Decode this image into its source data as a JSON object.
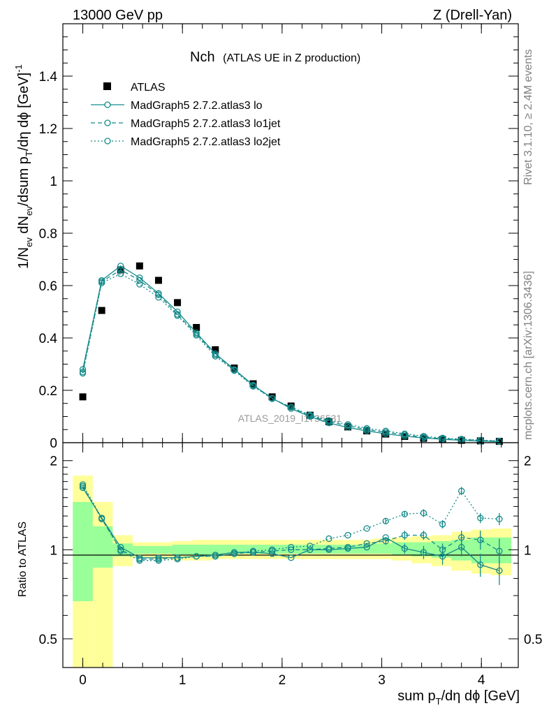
{
  "header": {
    "left_title": "13000 GeV pp",
    "right_title": "Z (Drell-Yan)"
  },
  "side_labels": {
    "rivet": "Rivet 3.1.10, ≥ 2.4M events",
    "mcplots": "mcplots.cern.ch [arXiv:1306.3436]"
  },
  "plot_title": {
    "main": "Nch",
    "sub": "(ATLAS UE in Z production)"
  },
  "watermark": "ATLAS_2019_I1736531",
  "colors": {
    "mc": "#138a8a",
    "data": "#000000",
    "band_inner": "#99ff99",
    "band_outer": "#ffff99",
    "frame": "#000000"
  },
  "chart_data": [
    {
      "type": "scatter",
      "panel": "main",
      "ylabel": "1/N_ev dN_ev/dsum p_T/dη dϕ [GeV]^-1",
      "ylim": [
        0,
        1.6
      ],
      "yticks": [
        0,
        0.2,
        0.4,
        0.6,
        0.8,
        1,
        1.2,
        1.4
      ],
      "ytick_labels": [
        "0",
        "0.2",
        "0.4",
        "0.6",
        "0.8",
        "1",
        "1.2",
        "1.4"
      ],
      "legend_position": "top-left",
      "x": [
        0.0,
        0.19,
        0.38,
        0.57,
        0.76,
        0.95,
        1.14,
        1.33,
        1.52,
        1.71,
        1.9,
        2.09,
        2.28,
        2.47,
        2.66,
        2.85,
        3.04,
        3.23,
        3.42,
        3.61,
        3.8,
        3.99,
        4.18
      ],
      "series": [
        {
          "name": "ATLAS",
          "style": "square",
          "values": [
            0.175,
            0.505,
            0.66,
            0.675,
            0.62,
            0.535,
            0.44,
            0.355,
            0.285,
            0.225,
            0.175,
            0.14,
            0.105,
            0.08,
            0.06,
            0.045,
            0.033,
            0.024,
            0.017,
            0.012,
            0.009,
            0.007,
            0.005
          ]
        },
        {
          "name": "MadGraph5 2.7.2.atlas3 lo",
          "style": "solid",
          "values": [
            0.28,
            0.62,
            0.675,
            0.63,
            0.57,
            0.5,
            0.42,
            0.34,
            0.28,
            0.22,
            0.17,
            0.13,
            0.1,
            0.075,
            0.058,
            0.045,
            0.034,
            0.025,
            0.018,
            0.013,
            0.009,
            0.006,
            0.004
          ]
        },
        {
          "name": "MadGraph5 2.7.2.atlas3 lo1jet",
          "style": "dashed",
          "values": [
            0.27,
            0.615,
            0.66,
            0.62,
            0.565,
            0.49,
            0.415,
            0.335,
            0.278,
            0.218,
            0.168,
            0.135,
            0.103,
            0.08,
            0.065,
            0.05,
            0.04,
            0.03,
            0.021,
            0.015,
            0.012,
            0.009,
            0.006
          ]
        },
        {
          "name": "MadGraph5 2.7.2.atlas3 lo2jet",
          "style": "dotted",
          "values": [
            0.265,
            0.61,
            0.645,
            0.605,
            0.555,
            0.485,
            0.41,
            0.33,
            0.275,
            0.215,
            0.168,
            0.136,
            0.106,
            0.085,
            0.07,
            0.055,
            0.045,
            0.034,
            0.025,
            0.018,
            0.014,
            0.01,
            0.007
          ]
        }
      ]
    },
    {
      "type": "line",
      "panel": "ratio",
      "ylabel": "Ratio to ATLAS",
      "ylim": [
        0.4,
        2.3
      ],
      "log_y": true,
      "yticks": [
        0.5,
        1,
        2
      ],
      "ytick_labels": [
        "0.5",
        "1",
        "2"
      ],
      "xlabel": "sum p_T/dη dϕ [GeV]",
      "xlim": [
        -0.2,
        4.37
      ],
      "xticks": [
        0,
        1,
        2,
        3,
        4
      ],
      "xtick_labels": [
        "0",
        "1",
        "2",
        "3",
        "4"
      ],
      "x": [
        0.0,
        0.19,
        0.38,
        0.57,
        0.76,
        0.95,
        1.14,
        1.33,
        1.52,
        1.71,
        1.9,
        2.09,
        2.28,
        2.47,
        2.66,
        2.85,
        3.04,
        3.23,
        3.42,
        3.61,
        3.8,
        3.99,
        4.18
      ],
      "bin_edges": [
        -0.1,
        0.1,
        0.3,
        0.5,
        0.7,
        0.9,
        1.1,
        1.3,
        1.5,
        1.7,
        1.9,
        2.1,
        2.3,
        2.5,
        2.7,
        2.9,
        3.1,
        3.3,
        3.5,
        3.7,
        3.9,
        4.1,
        4.3
      ],
      "band_inner": {
        "low": [
          0.67,
          0.87,
          0.95,
          0.97,
          0.97,
          0.96,
          0.96,
          0.97,
          0.97,
          0.97,
          0.97,
          0.97,
          0.97,
          0.97,
          0.97,
          0.97,
          0.96,
          0.95,
          0.94,
          0.92,
          0.9,
          0.9,
          0.9
        ],
        "high": [
          1.45,
          1.2,
          1.05,
          1.03,
          1.03,
          1.04,
          1.04,
          1.04,
          1.04,
          1.04,
          1.04,
          1.04,
          1.04,
          1.04,
          1.04,
          1.05,
          1.06,
          1.06,
          1.07,
          1.08,
          1.1,
          1.1,
          1.1
        ]
      },
      "band_outer": {
        "low": [
          0.35,
          0.35,
          0.88,
          0.94,
          0.93,
          0.92,
          0.92,
          0.93,
          0.93,
          0.93,
          0.93,
          0.93,
          0.93,
          0.93,
          0.93,
          0.93,
          0.92,
          0.9,
          0.88,
          0.85,
          0.83,
          0.82,
          0.81
        ],
        "high": [
          1.78,
          1.45,
          1.12,
          1.06,
          1.06,
          1.07,
          1.08,
          1.08,
          1.08,
          1.08,
          1.08,
          1.08,
          1.08,
          1.08,
          1.08,
          1.09,
          1.1,
          1.11,
          1.12,
          1.15,
          1.17,
          1.18,
          1.2
        ]
      },
      "series": [
        {
          "name": "MadGraph5 2.7.2.atlas3 lo",
          "style": "solid",
          "values": [
            1.62,
            1.28,
            1.02,
            0.94,
            0.94,
            0.94,
            0.95,
            0.96,
            0.98,
            0.98,
            0.97,
            0.94,
            1.0,
            1.0,
            1.01,
            1.02,
            1.1,
            1.01,
            0.98,
            0.95,
            1.02,
            0.89,
            0.85
          ],
          "errors": [
            0,
            0,
            0,
            0,
            0,
            0,
            0,
            0,
            0,
            0,
            0,
            0,
            0,
            0,
            0,
            0,
            0,
            0.04,
            0.05,
            0.06,
            0.07,
            0.08,
            0.09
          ]
        },
        {
          "name": "MadGraph5 2.7.2.atlas3 lo1jet",
          "style": "dashed",
          "values": [
            1.64,
            1.27,
            1.0,
            0.93,
            0.93,
            0.94,
            0.95,
            0.95,
            0.97,
            0.98,
            0.99,
            1.0,
            1.0,
            1.01,
            1.02,
            1.05,
            1.07,
            1.12,
            1.12,
            1.0,
            1.1,
            1.08,
            0.99
          ],
          "errors": [
            0,
            0,
            0,
            0,
            0,
            0,
            0,
            0,
            0,
            0,
            0,
            0,
            0,
            0,
            0,
            0,
            0.03,
            0.04,
            0.04,
            0.05,
            0.06,
            0.08,
            0.1
          ]
        },
        {
          "name": "MadGraph5 2.7.2.atlas3 lo2jet",
          "style": "dotted",
          "values": [
            1.66,
            1.28,
            0.99,
            0.92,
            0.92,
            0.93,
            0.95,
            0.95,
            0.97,
            0.99,
            1.0,
            1.02,
            1.03,
            1.09,
            1.12,
            1.18,
            1.25,
            1.32,
            1.33,
            1.22,
            1.58,
            1.28,
            1.27
          ],
          "errors": [
            0,
            0,
            0,
            0,
            0,
            0,
            0,
            0,
            0,
            0,
            0,
            0,
            0,
            0,
            0,
            0,
            0.03,
            0.03,
            0.04,
            0.04,
            0.05,
            0.05,
            0.06
          ]
        }
      ]
    }
  ]
}
